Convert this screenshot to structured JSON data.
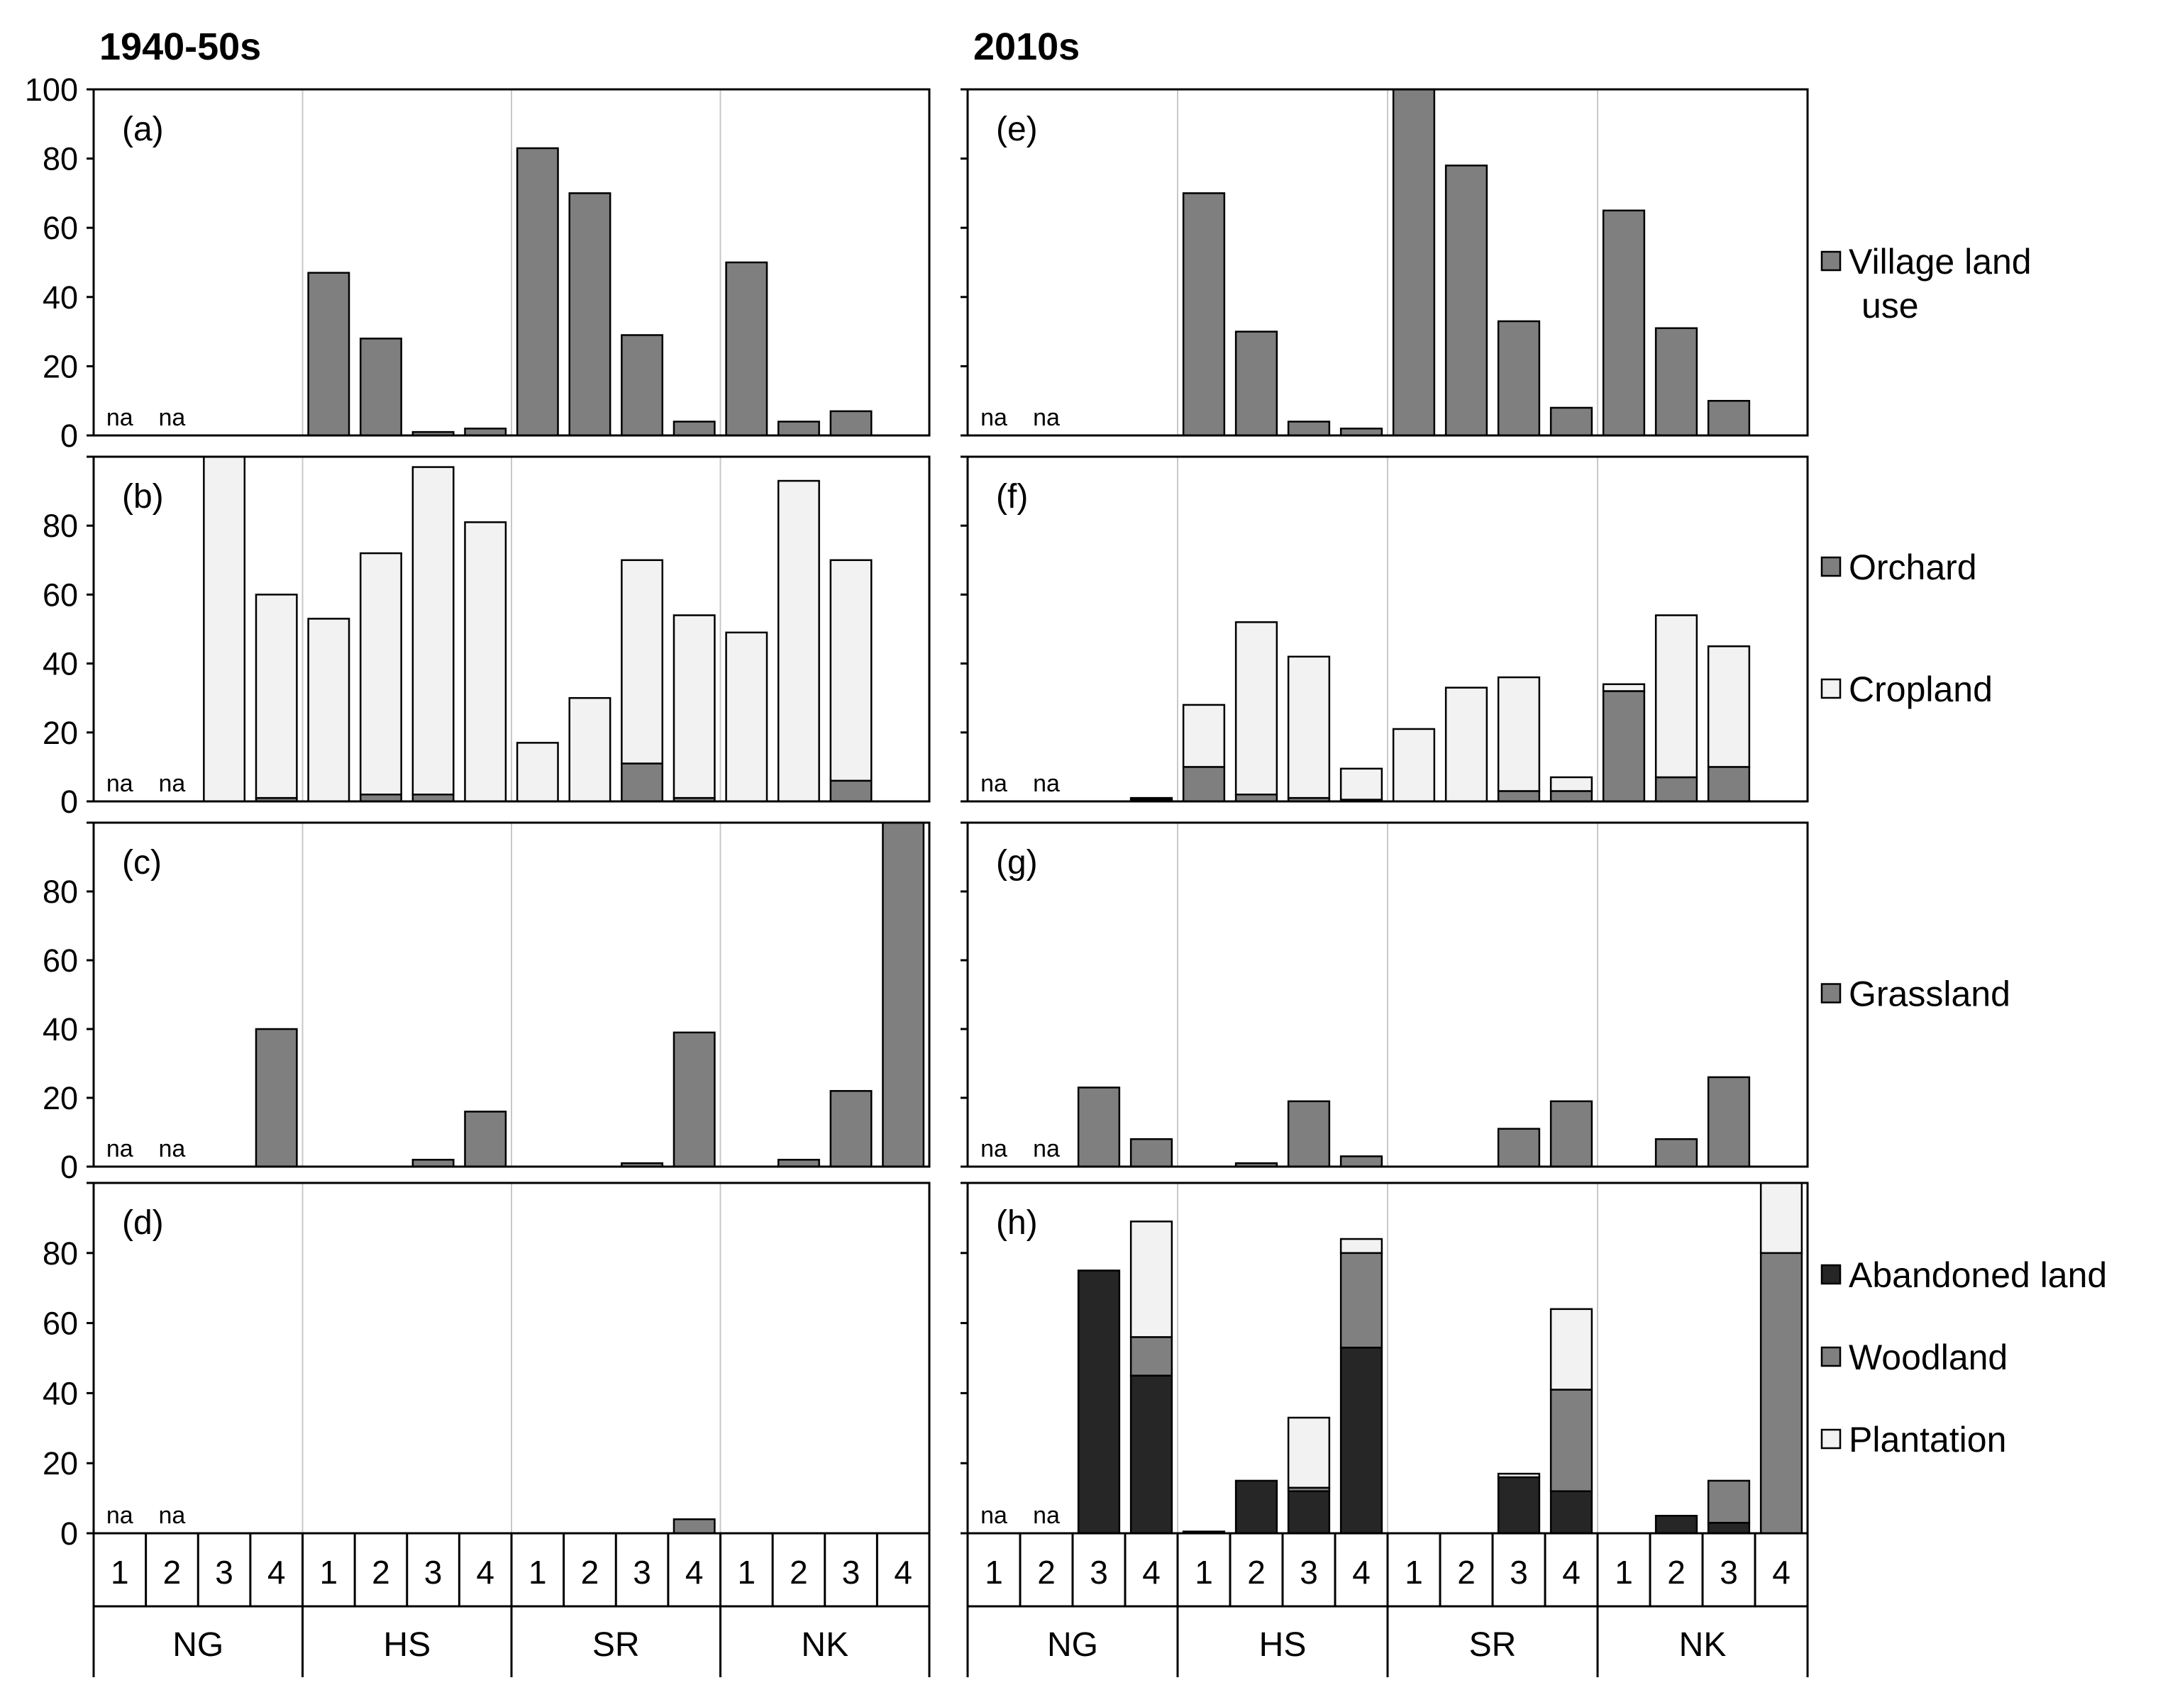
{
  "chart_data": {
    "type": "bar",
    "stacked": true,
    "titles": [
      "1940-50s",
      "2010s"
    ],
    "groups": [
      "NG",
      "HS",
      "SR",
      "NK"
    ],
    "categories": [
      "1",
      "2",
      "3",
      "4"
    ],
    "ylim": [
      0,
      100
    ],
    "yticks": [
      0,
      20,
      40,
      60,
      80,
      100
    ],
    "na_text": "na",
    "colors": {
      "Village land use": "#7f7f7f",
      "Orchard": "#7f7f7f",
      "Cropland": "#f2f2f2",
      "Grassland": "#7f7f7f",
      "Abandoned land": "#262626",
      "Woodland": "#808080",
      "Plantation": "#f2f2f2"
    },
    "rows": [
      {
        "legend": [
          {
            "name": "Village land use",
            "lines": [
              "Village land",
              "use"
            ]
          }
        ],
        "panels": [
          {
            "label": "(a)",
            "na": [
              true,
              true,
              false,
              false,
              false,
              false,
              false,
              false,
              false,
              false,
              false,
              false,
              false,
              false,
              false,
              false
            ],
            "series": [
              {
                "name": "Village land use",
                "values": [
                  null,
                  null,
                  0,
                  0,
                  47,
                  28,
                  1,
                  2,
                  83,
                  70,
                  29,
                  4,
                  50,
                  4,
                  7,
                  0
                ]
              }
            ]
          },
          {
            "label": "(e)",
            "na": [
              true,
              true,
              false,
              false,
              false,
              false,
              false,
              false,
              false,
              false,
              false,
              false,
              false,
              false,
              false,
              false
            ],
            "series": [
              {
                "name": "Village land use",
                "values": [
                  null,
                  null,
                  0,
                  0,
                  70,
                  30,
                  4,
                  2,
                  100,
                  78,
                  33,
                  8,
                  65,
                  31,
                  10,
                  0
                ]
              }
            ]
          }
        ]
      },
      {
        "legend": [
          {
            "name": "Orchard",
            "lines": [
              "Orchard"
            ]
          },
          {
            "name": "Cropland",
            "lines": [
              "Cropland"
            ]
          }
        ],
        "panels": [
          {
            "label": "(b)",
            "na": [
              true,
              true,
              false,
              false,
              false,
              false,
              false,
              false,
              false,
              false,
              false,
              false,
              false,
              false,
              false,
              false
            ],
            "series": [
              {
                "name": "Orchard",
                "values": [
                  null,
                  null,
                  0,
                  1,
                  0,
                  2,
                  2,
                  0,
                  0,
                  0,
                  11,
                  1,
                  0,
                  0,
                  6,
                  0
                ]
              },
              {
                "name": "Cropland",
                "values": [
                  null,
                  null,
                  100,
                  59,
                  53,
                  70,
                  95,
                  81,
                  17,
                  30,
                  59,
                  53,
                  49,
                  93,
                  64,
                  0
                ]
              }
            ]
          },
          {
            "label": "(f)",
            "na": [
              true,
              true,
              false,
              false,
              false,
              false,
              false,
              false,
              false,
              false,
              false,
              false,
              false,
              false,
              false,
              false
            ],
            "series": [
              {
                "name": "Orchard",
                "values": [
                  null,
                  null,
                  0,
                  0.5,
                  10,
                  2,
                  1,
                  0.5,
                  0,
                  0,
                  3,
                  3,
                  32,
                  7,
                  10,
                  0
                ]
              },
              {
                "name": "Cropland",
                "values": [
                  null,
                  null,
                  0,
                  0.5,
                  18,
                  50,
                  41,
                  9,
                  21,
                  33,
                  33,
                  4,
                  2,
                  47,
                  35,
                  0
                ]
              }
            ]
          }
        ]
      },
      {
        "legend": [
          {
            "name": "Grassland",
            "lines": [
              "Grassland"
            ]
          }
        ],
        "panels": [
          {
            "label": "(c)",
            "na": [
              true,
              true,
              false,
              false,
              false,
              false,
              false,
              false,
              false,
              false,
              false,
              false,
              false,
              false,
              false,
              false
            ],
            "series": [
              {
                "name": "Grassland",
                "values": [
                  null,
                  null,
                  0,
                  40,
                  0,
                  0,
                  2,
                  16,
                  0,
                  0,
                  1,
                  39,
                  0,
                  2,
                  22,
                  100
                ]
              }
            ]
          },
          {
            "label": "(g)",
            "na": [
              true,
              true,
              false,
              false,
              false,
              false,
              false,
              false,
              false,
              false,
              false,
              false,
              false,
              false,
              false,
              false
            ],
            "series": [
              {
                "name": "Grassland",
                "values": [
                  null,
                  null,
                  23,
                  8,
                  0,
                  1,
                  19,
                  3,
                  0,
                  0,
                  11,
                  19,
                  0,
                  8,
                  26,
                  0
                ]
              }
            ]
          }
        ]
      },
      {
        "legend": [
          {
            "name": "Abandoned land",
            "lines": [
              "Abandoned land"
            ]
          },
          {
            "name": "Woodland",
            "lines": [
              "Woodland"
            ]
          },
          {
            "name": "Plantation",
            "lines": [
              "Plantation"
            ]
          }
        ],
        "panels": [
          {
            "label": "(d)",
            "na": [
              true,
              true,
              false,
              false,
              false,
              false,
              false,
              false,
              false,
              false,
              false,
              false,
              false,
              false,
              false,
              false
            ],
            "series": [
              {
                "name": "Abandoned land",
                "values": [
                  null,
                  null,
                  0,
                  0,
                  0,
                  0,
                  0,
                  0,
                  0,
                  0,
                  0,
                  0,
                  0,
                  0,
                  0,
                  0
                ]
              },
              {
                "name": "Woodland",
                "values": [
                  null,
                  null,
                  0,
                  0,
                  0,
                  0,
                  0,
                  0,
                  0,
                  0,
                  0,
                  4,
                  0,
                  0,
                  0,
                  0
                ]
              },
              {
                "name": "Plantation",
                "values": [
                  null,
                  null,
                  0,
                  0,
                  0,
                  0,
                  0,
                  0,
                  0,
                  0,
                  0,
                  0,
                  0,
                  0,
                  0,
                  0
                ]
              }
            ]
          },
          {
            "label": "(h)",
            "na": [
              true,
              true,
              false,
              false,
              false,
              false,
              false,
              false,
              false,
              false,
              false,
              false,
              false,
              false,
              false,
              false
            ],
            "series": [
              {
                "name": "Abandoned land",
                "values": [
                  null,
                  null,
                  75,
                  45,
                  0.5,
                  15,
                  12,
                  53,
                  0,
                  0,
                  16,
                  12,
                  0,
                  5,
                  3,
                  0
                ]
              },
              {
                "name": "Woodland",
                "values": [
                  null,
                  null,
                  0,
                  11,
                  0,
                  0,
                  1,
                  27,
                  0,
                  0,
                  0,
                  29,
                  0,
                  0,
                  12,
                  80
                ]
              },
              {
                "name": "Plantation",
                "values": [
                  null,
                  null,
                  0,
                  33,
                  0,
                  0,
                  20,
                  4,
                  0,
                  0,
                  1,
                  23,
                  0,
                  0,
                  0,
                  20
                ]
              }
            ]
          }
        ]
      }
    ]
  }
}
